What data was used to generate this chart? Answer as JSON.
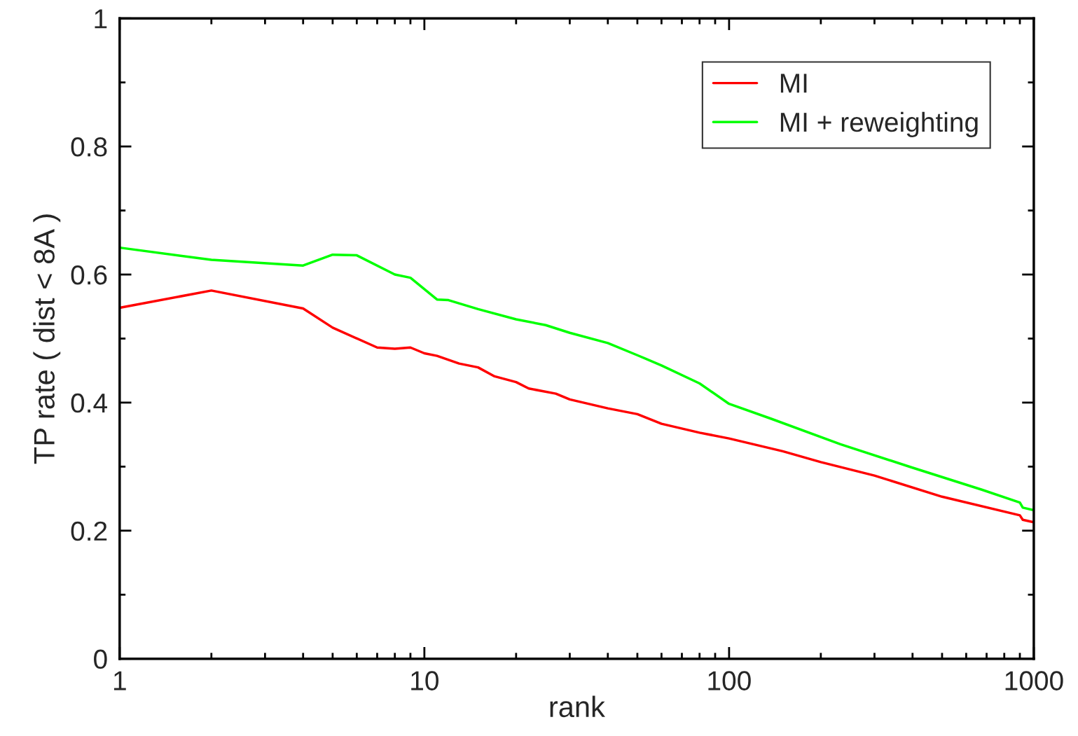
{
  "chart_data": {
    "type": "line",
    "xlabel": "rank",
    "ylabel": "TP rate ( dist < 8A )",
    "log": "x",
    "xlim": [
      1,
      1000
    ],
    "xticks": [
      1,
      10,
      100,
      1000
    ],
    "ylim": [
      0,
      1
    ],
    "yticks": [
      0,
      0.2,
      0.4,
      0.6,
      0.8,
      1
    ],
    "grid": false,
    "legend": "top right",
    "marker": "none",
    "line_style": "solid",
    "series": [
      {
        "name": "MI",
        "color": "#ff0000",
        "x": [
          1,
          2,
          4,
          5,
          7,
          8,
          9,
          10,
          11,
          13,
          15,
          17,
          20,
          22,
          27,
          30,
          40,
          50,
          60,
          80,
          100,
          150,
          200,
          300,
          500,
          900,
          920,
          1000
        ],
        "values": [
          0.548,
          0.575,
          0.547,
          0.517,
          0.486,
          0.484,
          0.486,
          0.477,
          0.473,
          0.461,
          0.455,
          0.441,
          0.432,
          0.422,
          0.414,
          0.405,
          0.391,
          0.382,
          0.367,
          0.353,
          0.344,
          0.324,
          0.307,
          0.286,
          0.253,
          0.224,
          0.217,
          0.213
        ]
      },
      {
        "name": "MI + reweighting",
        "color": "#00ff00",
        "x": [
          1,
          2,
          4,
          5,
          6,
          8,
          9,
          11,
          12,
          15,
          20,
          25,
          30,
          40,
          50,
          60,
          80,
          100,
          137,
          232,
          396,
          675,
          900,
          920,
          1000
        ],
        "values": [
          0.642,
          0.623,
          0.614,
          0.631,
          0.63,
          0.6,
          0.595,
          0.561,
          0.56,
          0.546,
          0.53,
          0.521,
          0.509,
          0.493,
          0.474,
          0.458,
          0.43,
          0.398,
          0.375,
          0.335,
          0.299,
          0.264,
          0.244,
          0.236,
          0.232
        ]
      }
    ]
  }
}
